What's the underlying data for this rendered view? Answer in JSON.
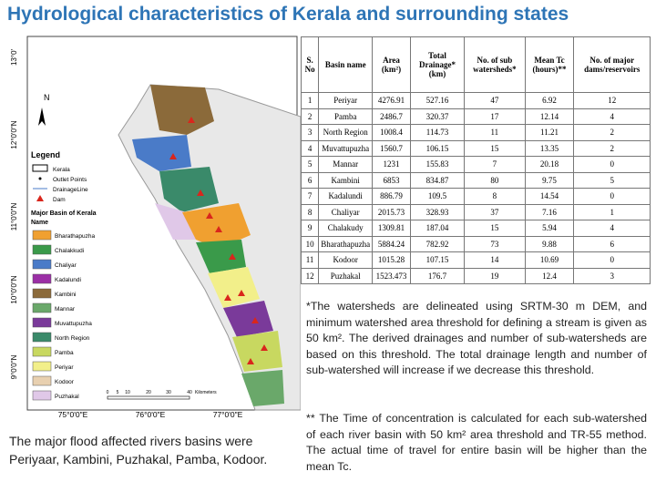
{
  "title": "Hydrological characteristics of Kerala and surrounding states",
  "map": {
    "north": "N",
    "legend_title": "Legend",
    "legend_items": [
      "Kerala",
      "Outlet Points",
      "DrainageLine",
      "Dam"
    ],
    "basin_title": "Major Basin of Kerala",
    "name_label": "Name",
    "basins": [
      {
        "name": "Bharathapuzha",
        "color": "#f0a030"
      },
      {
        "name": "Chalakkudi",
        "color": "#3a9a4a"
      },
      {
        "name": "Chaliyar",
        "color": "#4a7bc8"
      },
      {
        "name": "Kadalundi",
        "color": "#9b2fa6"
      },
      {
        "name": "Kambini",
        "color": "#8b6a3a"
      },
      {
        "name": "Mannar",
        "color": "#6aa86a"
      },
      {
        "name": "Muvattupuzha",
        "color": "#7a3a9a"
      },
      {
        "name": "North Region",
        "color": "#3a8a6a"
      },
      {
        "name": "Pamba",
        "color": "#c8d860"
      },
      {
        "name": "Periyar",
        "color": "#f2ef8a"
      },
      {
        "name": "Kodoor",
        "color": "#e8d0b0"
      },
      {
        "name": "Puzhakal",
        "color": "#e0c8e8"
      }
    ],
    "scale_labels": [
      "0",
      "5",
      "10",
      "20",
      "30",
      "40",
      "Kilometers"
    ],
    "latitudes": [
      "13°0'",
      "12°0'0\"N",
      "11°0'0\"N",
      "10°0'0\"N",
      "9°0'0\"N"
    ],
    "longitudes": [
      "75°0'0\"E",
      "76°0'0\"E",
      "77°0'0\"E"
    ]
  },
  "table": {
    "header": [
      "S. No",
      "Basin name",
      "Area (km²)",
      "Total Drainage* (km)",
      "No. of sub watersheds*",
      "Mean Tc (hours)**",
      "No. of major dams/reservoirs"
    ],
    "rows": [
      [
        "1",
        "Periyar",
        "4276.91",
        "527.16",
        "47",
        "6.92",
        "12"
      ],
      [
        "2",
        "Pamba",
        "2486.7",
        "320.37",
        "17",
        "12.14",
        "4"
      ],
      [
        "3",
        "North Region",
        "1008.4",
        "114.73",
        "11",
        "11.21",
        "2"
      ],
      [
        "4",
        "Muvattupuzha",
        "1560.7",
        "106.15",
        "15",
        "13.35",
        "2"
      ],
      [
        "5",
        "Mannar",
        "1231",
        "155.83",
        "7",
        "20.18",
        "0"
      ],
      [
        "6",
        "Kambini",
        "6853",
        "834.87",
        "80",
        "9.75",
        "5"
      ],
      [
        "7",
        "Kadalundi",
        "886.79",
        "109.5",
        "8",
        "14.54",
        "0"
      ],
      [
        "8",
        "Chaliyar",
        "2015.73",
        "328.93",
        "37",
        "7.16",
        "1"
      ],
      [
        "9",
        "Chalakudy",
        "1309.81",
        "187.04",
        "15",
        "5.94",
        "4"
      ],
      [
        "10",
        "Bharathapuzha",
        "5884.24",
        "782.92",
        "73",
        "9.88",
        "6"
      ],
      [
        "11",
        "Kodoor",
        "1015.28",
        "107.15",
        "14",
        "10.69",
        "0"
      ],
      [
        "12",
        "Puzhakal",
        "1523.473",
        "176.7",
        "19",
        "12.4",
        "3"
      ]
    ]
  },
  "notes": [
    "*The watersheds are delineated using SRTM-30 m DEM, and minimum watershed area threshold for defining a stream is given as 50 km². The derived drainages and number of sub-watersheds are based on this threshold. The total drainage length and number of sub-watershed will increase if we decrease this threshold.",
    "** The Time of concentration is calculated for each sub-watershed of each river basin with 50 km² area threshold and TR-55 method. The actual time of travel for entire basin will be higher than the mean Tc."
  ],
  "summary": "The major flood affected rivers basins were Periyaar, Kambini, Puzhakal, Pamba, Kodoor."
}
